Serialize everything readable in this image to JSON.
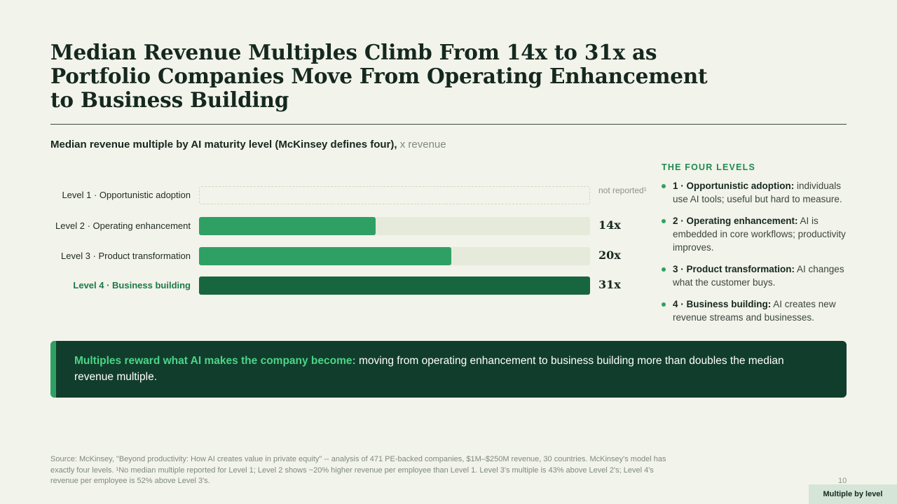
{
  "title": "Median Revenue Multiples Climb From 14x to 31x as Portfolio Companies Move From Operating Enhancement to Business Building",
  "subtitle": {
    "text": "Median revenue multiple by AI maturity level (McKinsey defines four), ",
    "unit": "x revenue"
  },
  "chart_data": {
    "type": "bar",
    "orientation": "horizontal",
    "categories": [
      "Level 1 · Opportunistic adoption",
      "Level 2 · Operating enhancement",
      "Level 3 · Product transformation",
      "Level 4 · Business building"
    ],
    "values": [
      null,
      14,
      20,
      31
    ],
    "value_labels": [
      "not reported¹",
      "14x",
      "20x",
      "31x"
    ],
    "xlim": [
      0,
      31
    ],
    "highlight_category": "Level 4 · Business building",
    "colors": {
      "bar": "#2fa064",
      "highlight_bar": "#17663f",
      "track": "#e6eadb"
    }
  },
  "levels_panel": {
    "heading": "THE FOUR LEVELS",
    "items": [
      {
        "name": "1 · Opportunistic adoption:",
        "desc": " individuals use AI tools; useful but hard to measure."
      },
      {
        "name": "2 · Operating enhancement:",
        "desc": " AI is embedded in core workflows; productivity improves."
      },
      {
        "name": "3 · Product transformation:",
        "desc": " AI changes what the customer buys."
      },
      {
        "name": "4 · Business building:",
        "desc": " AI creates new revenue streams and businesses."
      }
    ]
  },
  "callout": {
    "lead": "Multiples reward what AI makes the company become:",
    "body": " moving from operating enhancement to business building more than doubles the median revenue multiple."
  },
  "source": "Source: McKinsey, \"Beyond productivity: How AI creates value in private equity\" -- analysis of 471 PE-backed companies, $1M–$250M revenue, 30 countries. McKinsey's model has exactly four levels. ¹No median multiple reported for Level 1; Level 2 shows ~20% higher revenue per employee than Level 1. Level 3's multiple is 43% above Level 2's; Level 4's revenue per employee is 52% above Level 3's.",
  "page_number": "10",
  "section_tag": "Multiple by level"
}
